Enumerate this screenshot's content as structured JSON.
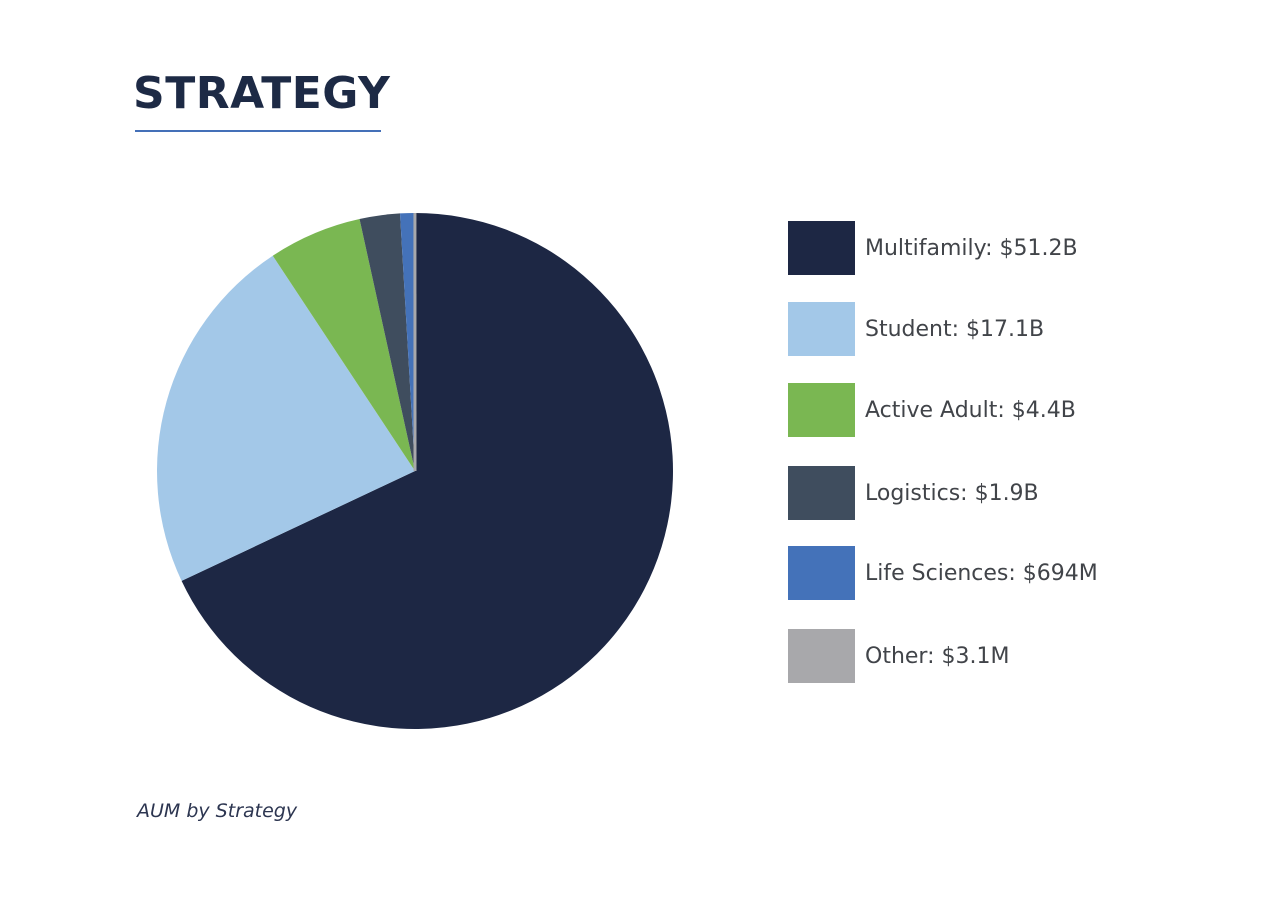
{
  "header": {
    "title": "STRATEGY"
  },
  "chart_data": {
    "type": "pie",
    "title": "STRATEGY",
    "caption": "AUM by Strategy",
    "legend_position": "right",
    "slices": [
      {
        "name": "Multifamily",
        "value": 51.2,
        "unit": "B",
        "label": "Multifamily: $51.2B",
        "color": "#1d2744"
      },
      {
        "name": "Student",
        "value": 17.1,
        "unit": "B",
        "label": "Student: $17.1B",
        "color": "#a3c8e8"
      },
      {
        "name": "Active Adult",
        "value": 4.4,
        "unit": "B",
        "label": "Active Adult: $4.4B",
        "color": "#7ab752"
      },
      {
        "name": "Logistics",
        "value": 1.9,
        "unit": "B",
        "label": "Logistics: $1.9B",
        "color": "#3f4d5e"
      },
      {
        "name": "Life Sciences",
        "value": 0.694,
        "unit": "B",
        "label": "Life Sciences: $694M",
        "color": "#4472b9"
      },
      {
        "name": "Other",
        "value": 0.0031,
        "unit": "B",
        "label": "Other: $3.1M",
        "color": "#a8a8ab"
      }
    ]
  }
}
